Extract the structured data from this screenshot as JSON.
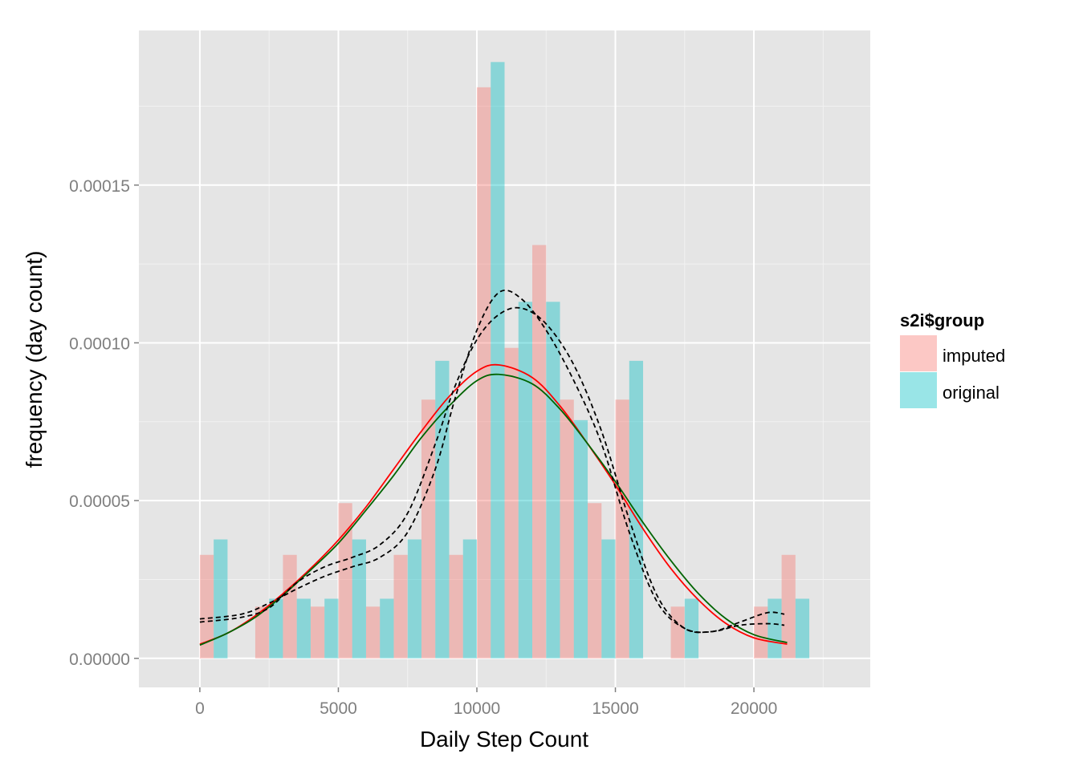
{
  "chart_data": {
    "type": "bar",
    "title": "",
    "xlabel": "Daily Step Count",
    "ylabel": "frequency (day count)",
    "xlim": [
      -2200,
      24200
    ],
    "ylim": [
      -9.2e-06,
      0.000199
    ],
    "x_ticks": [
      0,
      5000,
      10000,
      15000,
      20000
    ],
    "x_tick_labels": [
      "0",
      "5000",
      "10000",
      "15000",
      "20000"
    ],
    "y_ticks": [
      0,
      5e-05,
      0.0001,
      0.00015
    ],
    "y_tick_labels": [
      "0.00000",
      "0.00005",
      "0.00010",
      "0.00015"
    ],
    "grid": true,
    "legend": {
      "title": "s2i$group",
      "position": "right",
      "entries": [
        {
          "label": "imputed",
          "color": "#F8766D"
        },
        {
          "label": "original",
          "color": "#00BFC4"
        }
      ]
    },
    "bin_width": 1000,
    "bar_alpha": 0.4,
    "bins_x": [
      0,
      1000,
      2000,
      3000,
      4000,
      5000,
      6000,
      7000,
      8000,
      9000,
      10000,
      11000,
      12000,
      13000,
      14000,
      15000,
      16000,
      17000,
      18000,
      19000,
      20000,
      21000
    ],
    "series": [
      {
        "name": "imputed",
        "color": "#F8766D",
        "values": [
          3.28e-05,
          0,
          1.64e-05,
          3.28e-05,
          1.64e-05,
          4.92e-05,
          1.64e-05,
          3.28e-05,
          8.2e-05,
          3.28e-05,
          0.000181,
          9.84e-05,
          0.000131,
          8.2e-05,
          4.92e-05,
          8.2e-05,
          0,
          1.64e-05,
          0,
          0,
          1.64e-05,
          3.28e-05
        ]
      },
      {
        "name": "original",
        "color": "#00BFC4",
        "values": [
          3.77e-05,
          0,
          1.89e-05,
          1.89e-05,
          1.89e-05,
          3.77e-05,
          1.89e-05,
          3.77e-05,
          9.43e-05,
          3.77e-05,
          0.000189,
          0.000113,
          0.000113,
          7.55e-05,
          3.77e-05,
          9.43e-05,
          0,
          1.89e-05,
          0,
          0,
          1.89e-05,
          1.89e-05
        ]
      }
    ],
    "lines": [
      {
        "color": "#FF0000",
        "dash": "solid",
        "x": [
          0,
          1000,
          2000,
          3000,
          4000,
          5000,
          6000,
          7000,
          8000,
          9000,
          10000,
          10800,
          12000,
          13000,
          14000,
          15000,
          16000,
          17000,
          18000,
          19000,
          20000,
          21200
        ],
        "y": [
          4.5e-06,
          8e-06,
          1.35e-05,
          2.05e-05,
          2.85e-05,
          3.75e-05,
          4.8e-05,
          6e-05,
          7.2e-05,
          8.3e-05,
          9.1e-05,
          9.3e-05,
          8.9e-05,
          8e-05,
          6.8e-05,
          5.5e-05,
          4.1e-05,
          2.85e-05,
          1.85e-05,
          1.1e-05,
          6.5e-06,
          4.5e-06
        ]
      },
      {
        "color": "#006400",
        "dash": "solid",
        "x": [
          0,
          1000,
          2000,
          3000,
          4000,
          5000,
          6000,
          7000,
          8000,
          9000,
          10000,
          10800,
          12000,
          13000,
          14000,
          15000,
          16000,
          17000,
          18000,
          19000,
          20000,
          21200
        ],
        "y": [
          4.2e-06,
          8e-06,
          1.3e-05,
          2e-05,
          2.8e-05,
          3.65e-05,
          4.7e-05,
          5.8e-05,
          7e-05,
          8e-05,
          8.8e-05,
          9e-05,
          8.7e-05,
          7.9e-05,
          6.8e-05,
          5.6e-05,
          4.3e-05,
          3.1e-05,
          2.05e-05,
          1.25e-05,
          7.5e-06,
          5e-06
        ]
      },
      {
        "color": "#000000",
        "dash": "dashed",
        "x": [
          0,
          1500,
          2500,
          3500,
          4500,
          5500,
          6500,
          7500,
          8500,
          9200,
          10000,
          10800,
          11600,
          12500,
          13500,
          14500,
          15500,
          16500,
          17500,
          18500,
          19500,
          20500,
          21100
        ],
        "y": [
          1.25e-05,
          1.4e-05,
          1.75e-05,
          2.2e-05,
          2.6e-05,
          2.9e-05,
          3.2e-05,
          4e-05,
          6e-05,
          8.2e-05,
          0.000104,
          0.000116,
          0.000114,
          0.000104,
          8.8e-05,
          6.8e-05,
          4e-05,
          1.8e-05,
          9.5e-06,
          8.5e-06,
          1.15e-05,
          1.45e-05,
          1.4e-05
        ]
      },
      {
        "color": "#000000",
        "dash": "dashed",
        "x": [
          0,
          1500,
          2500,
          3500,
          4500,
          5500,
          6500,
          7500,
          8500,
          9200,
          10000,
          10800,
          11600,
          12500,
          13500,
          14500,
          15500,
          16500,
          17500,
          18500,
          19500,
          20500,
          21100
        ],
        "y": [
          1.15e-05,
          1.3e-05,
          1.6e-05,
          2.4e-05,
          2.9e-05,
          3.2e-05,
          3.6e-05,
          4.6e-05,
          6.8e-05,
          8.6e-05,
          0.000101,
          0.000109,
          0.000111,
          0.000106,
          9.3e-05,
          7.2e-05,
          4.4e-05,
          2e-05,
          9.5e-06,
          8.5e-06,
          1.05e-05,
          1.1e-05,
          1.05e-05
        ]
      }
    ]
  }
}
